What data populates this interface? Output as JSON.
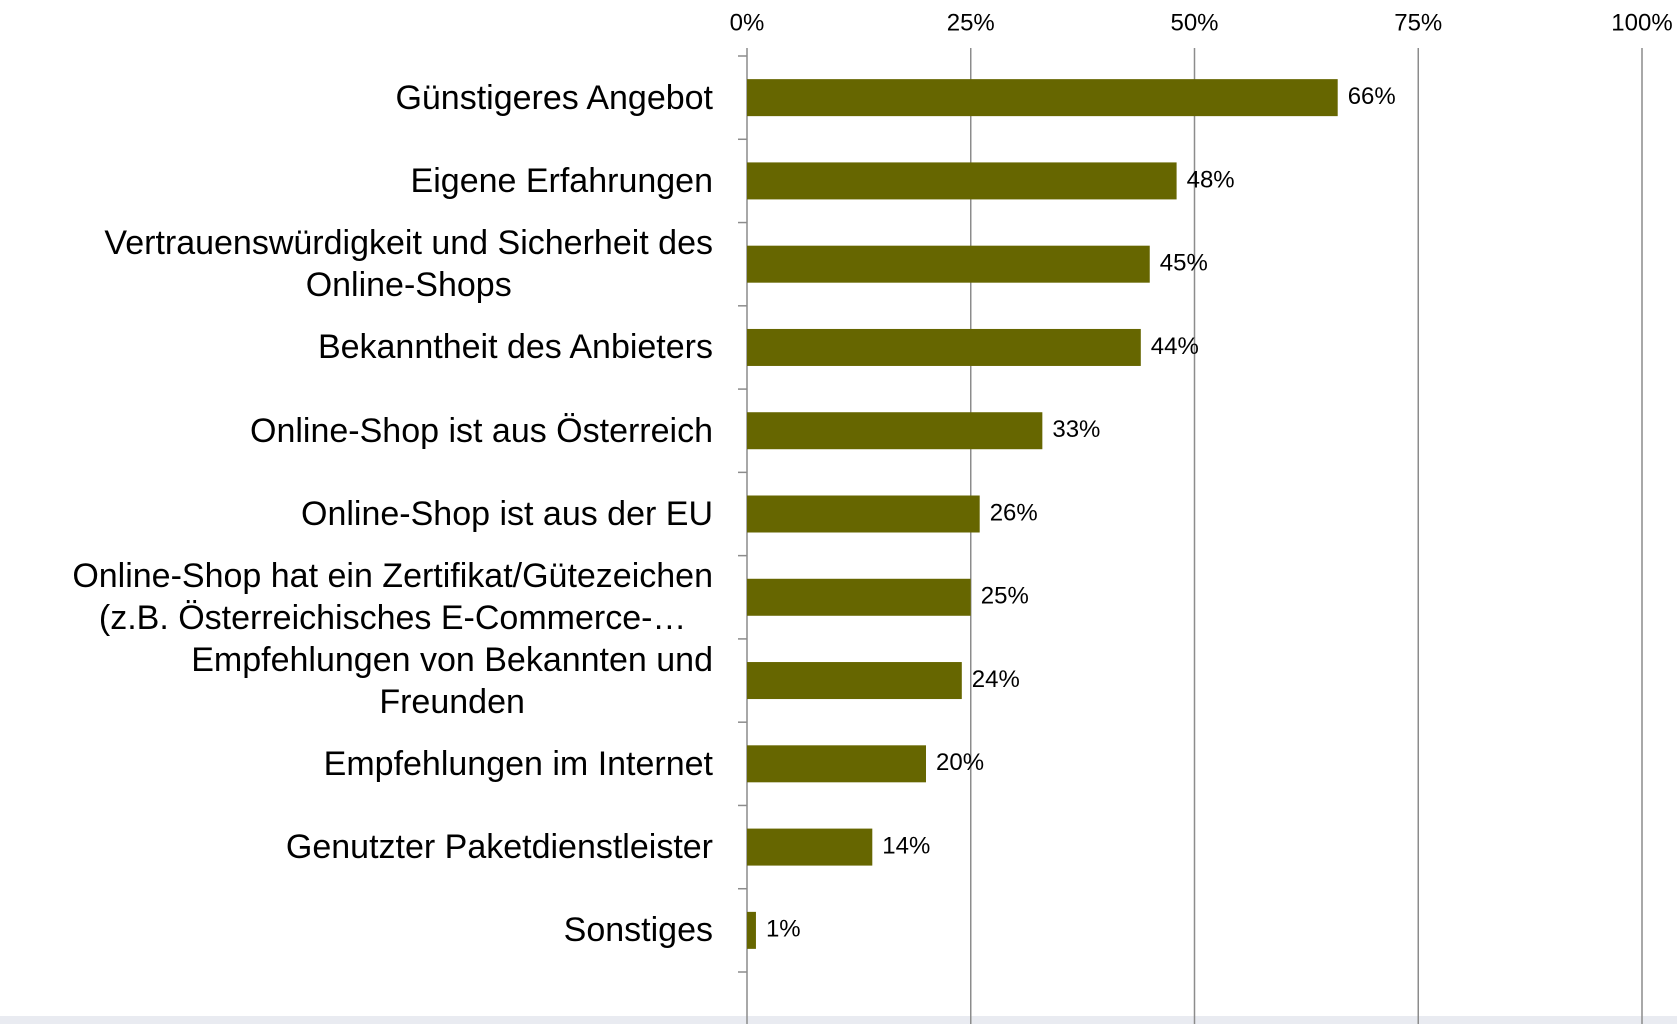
{
  "chart_data": {
    "type": "bar",
    "orientation": "horizontal",
    "categories": [
      "Günstigeres Angebot",
      "Eigene Erfahrungen",
      "Vertrauenswürdigkeit und Sicherheit des\nOnline-Shops",
      "Bekanntheit des Anbieters",
      "Online-Shop ist aus Österreich",
      "Online-Shop ist aus der EU",
      "Online-Shop hat ein Zertifikat/Gütezeichen\n(z.B. Österreichisches E-Commerce-…",
      "Empfehlungen von Bekannten und\nFreunden",
      "Empfehlungen im Internet",
      "Genutzter Paketdienstleister",
      "Sonstiges"
    ],
    "values": [
      66,
      48,
      45,
      44,
      33,
      26,
      25,
      24,
      20,
      14,
      1
    ],
    "value_labels": [
      "66%",
      "48%",
      "45%",
      "44%",
      "33%",
      "26%",
      "25%",
      "24%",
      "20%",
      "14%",
      "1%"
    ],
    "color": "#666600",
    "xlim": [
      0,
      100
    ],
    "xticks": [
      {
        "value": 0,
        "label": "0%"
      },
      {
        "value": 25,
        "label": "25%"
      },
      {
        "value": 50,
        "label": "50%"
      },
      {
        "value": 75,
        "label": "75%"
      },
      {
        "value": 100,
        "label": "100%"
      }
    ],
    "grid": true
  }
}
